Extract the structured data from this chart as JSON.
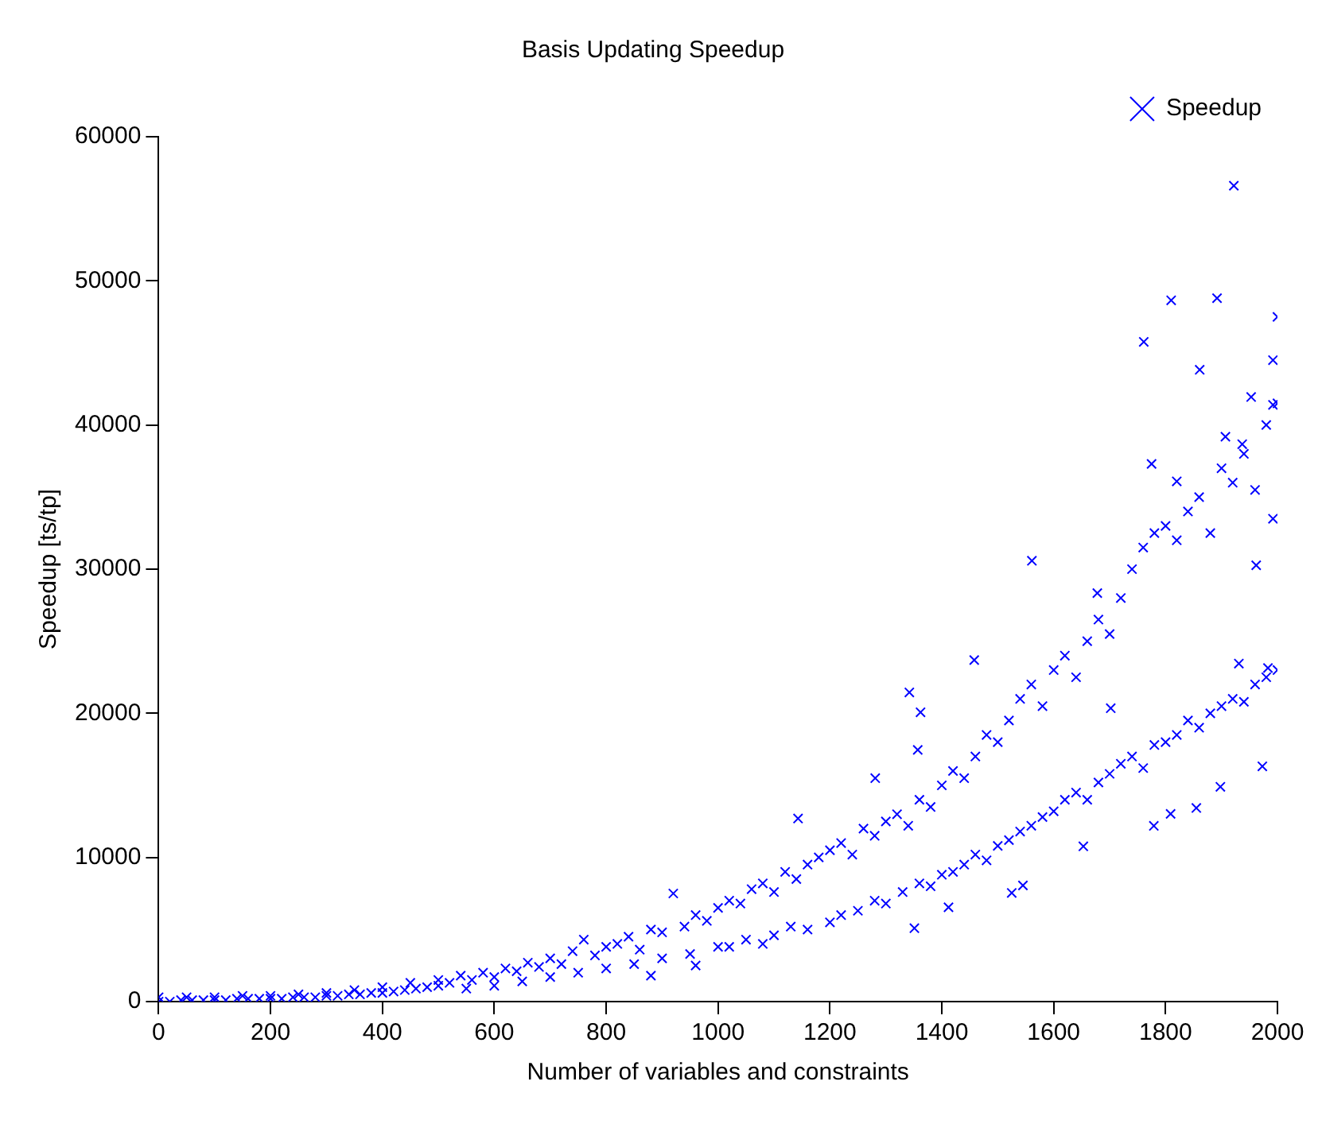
{
  "chart_data": {
    "type": "scatter",
    "title": "Basis Updating Speedup",
    "xlabel": "Number of variables and constraints",
    "ylabel": "Speedup [ts/tp]",
    "xlim": [
      0,
      2000
    ],
    "xticks": [
      0,
      200,
      400,
      600,
      800,
      1000,
      1200,
      1400,
      1600,
      1800,
      2000
    ],
    "ylim": [
      0,
      60000
    ],
    "yticks": [
      0,
      10000,
      20000,
      30000,
      40000,
      50000,
      60000
    ],
    "grid": false,
    "legend": "top right",
    "marker": "cross",
    "series": [
      {
        "name": "Speedup",
        "color": "#0000ff",
        "x": [
          0,
          20,
          40,
          60,
          80,
          100,
          120,
          140,
          160,
          180,
          200,
          220,
          240,
          260,
          280,
          300,
          320,
          340,
          360,
          380,
          400,
          420,
          440,
          460,
          480,
          500,
          0,
          50,
          100,
          150,
          200,
          250,
          300,
          350,
          400,
          450,
          500,
          520,
          540,
          560,
          580,
          600,
          620,
          640,
          660,
          680,
          700,
          720,
          740,
          760,
          780,
          800,
          550,
          600,
          650,
          700,
          750,
          800,
          820,
          840,
          860,
          880,
          900,
          920,
          940,
          960,
          980,
          1000,
          850,
          900,
          950,
          1000,
          880,
          960,
          1020,
          1040,
          1060,
          1080,
          1100,
          1120,
          1140,
          1160,
          1180,
          1200,
          1220,
          1240,
          1260,
          1280,
          1300,
          1320,
          1340,
          1360,
          1380,
          1400,
          1020,
          1050,
          1080,
          1100,
          1130,
          1160,
          1200,
          1220,
          1250,
          1280,
          1300,
          1330,
          1360,
          1380,
          1400,
          1420,
          1440,
          1460,
          1480,
          1500,
          1520,
          1540,
          1560,
          1580,
          1600,
          1620,
          1640,
          1660,
          1680,
          1700,
          1720,
          1740,
          1760,
          1780,
          1800,
          1820,
          1840,
          1860,
          1880,
          1900,
          1920,
          1940,
          1960,
          1980,
          2000,
          1420,
          1440,
          1460,
          1480,
          1500,
          1520,
          1540,
          1560,
          1580,
          1600,
          1620,
          1640,
          1660,
          1680,
          1700,
          1720,
          1740,
          1760,
          1780,
          1800,
          1820,
          1840,
          1860,
          1880,
          1900,
          1920,
          1940,
          1960,
          1980,
          2000,
          1922,
          1810,
          1892,
          2000,
          1761,
          1861,
          1992,
          1953,
          1992,
          1775,
          1561,
          1820,
          1907,
          1937,
          1962,
          1992,
          1678,
          1342,
          1362,
          1357,
          1281,
          1143,
          1458,
          1351,
          1525,
          1545,
          1412,
          1779,
          1809,
          1855,
          1898,
          1973,
          1931,
          1983,
          1702,
          1653
        ],
        "values": [
          0,
          0,
          100,
          100,
          100,
          100,
          100,
          200,
          200,
          200,
          200,
          200,
          300,
          300,
          300,
          400,
          400,
          500,
          500,
          600,
          600,
          700,
          800,
          900,
          1000,
          1100,
          300,
          300,
          300,
          400,
          400,
          500,
          600,
          800,
          1000,
          1300,
          1500,
          1300,
          1800,
          1500,
          2000,
          1700,
          2300,
          2100,
          2700,
          2400,
          3000,
          2600,
          3500,
          4300,
          3200,
          3800,
          900,
          1100,
          1400,
          1700,
          2000,
          2300,
          4000,
          4500,
          3600,
          5000,
          4800,
          7500,
          5200,
          6000,
          5600,
          6500,
          2600,
          3000,
          3300,
          3800,
          1800,
          2500,
          7000,
          6800,
          7800,
          8200,
          7600,
          9000,
          8500,
          9500,
          10000,
          10500,
          11000,
          10200,
          12000,
          11500,
          12500,
          13000,
          12200,
          14000,
          13500,
          15000,
          3800,
          4300,
          4000,
          4600,
          5200,
          5000,
          5500,
          6000,
          6300,
          7000,
          6800,
          7600,
          8200,
          8000,
          8800,
          16000,
          15500,
          17000,
          18500,
          18000,
          19500,
          21000,
          22000,
          20500,
          23000,
          24000,
          22500,
          25000,
          26500,
          25500,
          28000,
          30000,
          31500,
          32500,
          33000,
          32000,
          34000,
          35000,
          32500,
          37000,
          36000,
          38000,
          35500,
          40000,
          41500,
          9000,
          9500,
          10200,
          9800,
          10800,
          11200,
          11800,
          12200,
          12800,
          13200,
          14000,
          14500,
          14000,
          15200,
          15800,
          16500,
          17000,
          16200,
          17800,
          18000,
          18500,
          19500,
          19000,
          20000,
          20500,
          21000,
          20800,
          22000,
          22500,
          23000,
          56600,
          48650,
          48800,
          47500,
          45770,
          43830,
          44500,
          41940,
          41400,
          37300,
          30580,
          36090,
          39190,
          38670,
          30270,
          33500,
          28340,
          21450,
          20070,
          17460,
          15500,
          12700,
          23690,
          5090,
          7540,
          8060,
          6540,
          12190,
          13020,
          13430,
          14900,
          16320,
          23450,
          23140,
          20350,
          10770
        ]
      }
    ]
  }
}
